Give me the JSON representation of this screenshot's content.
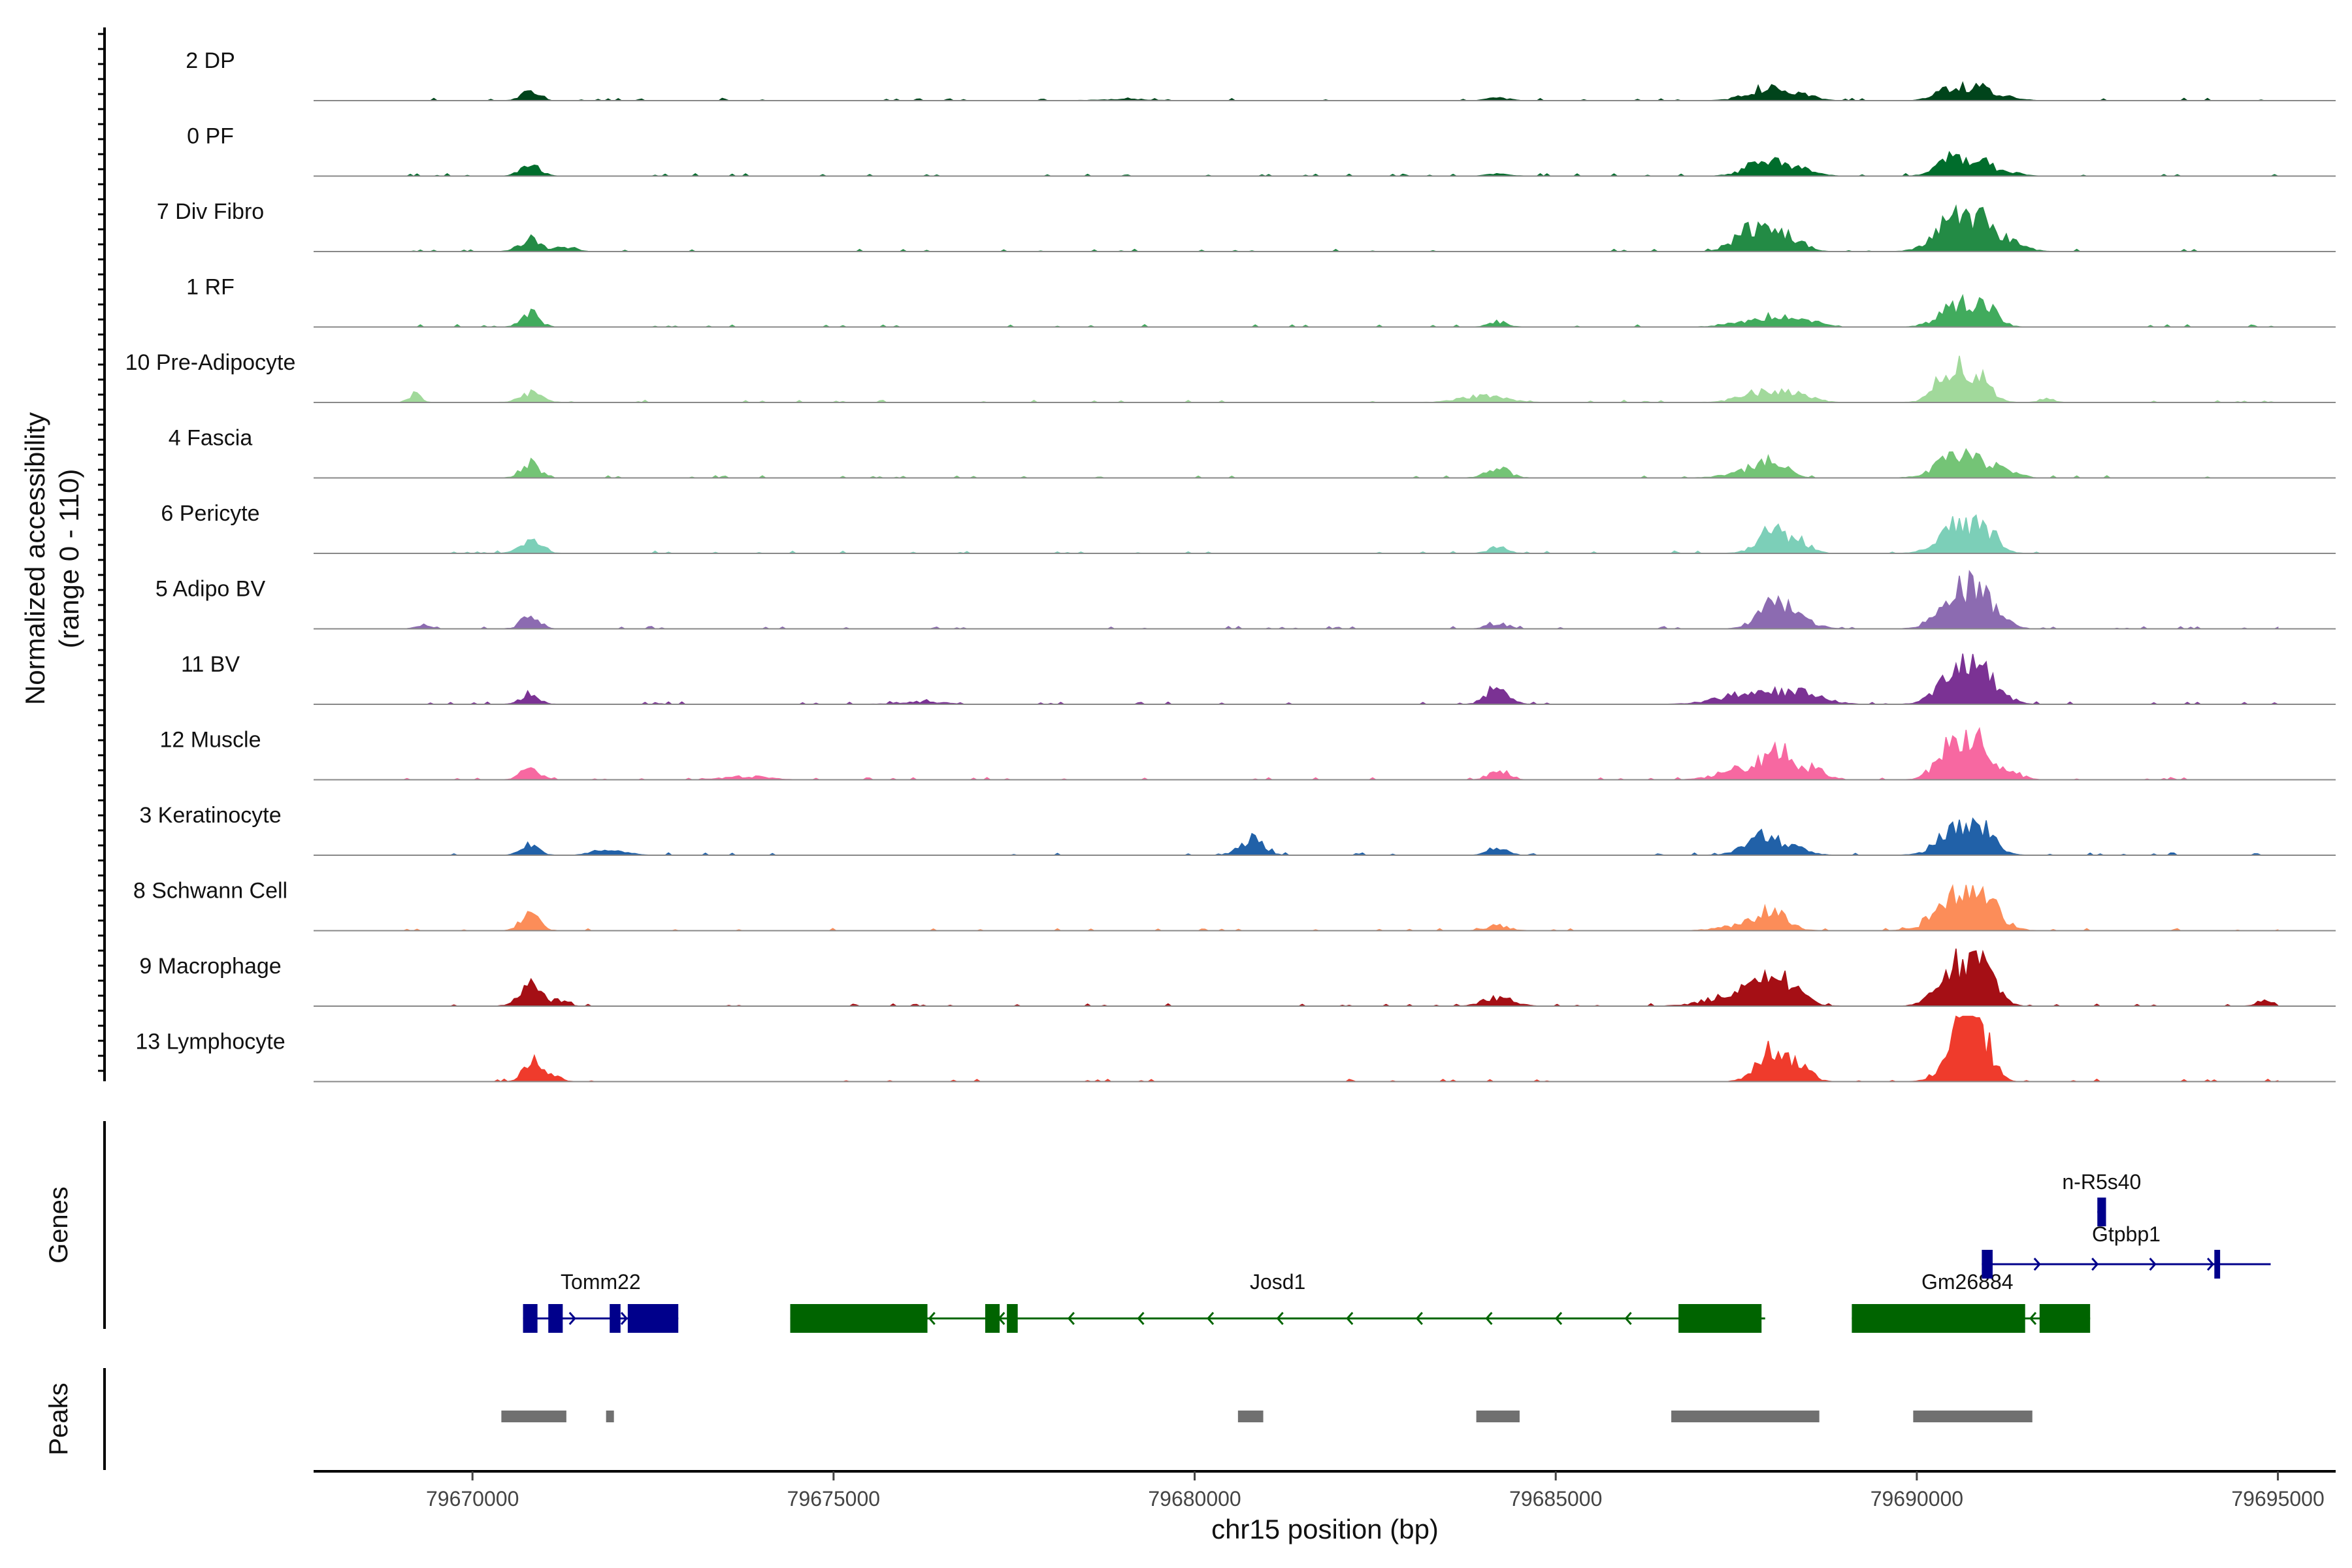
{
  "chart_data": {
    "type": "area",
    "title": "",
    "chromosome": "chr15",
    "xlabel": "chr15 position (bp)",
    "ylabel": "Normalized accessibility",
    "ylabel_range": "(range 0 - 110)",
    "ylim": [
      0,
      110
    ],
    "xlim": [
      79667800,
      79695800
    ],
    "x_ticks": [
      79670000,
      79675000,
      79680000,
      79685000,
      79690000,
      79695000
    ],
    "x_tick_labels": [
      "79670000",
      "79675000",
      "79680000",
      "79685000",
      "79690000",
      "79695000"
    ],
    "genes_panel_label": "Genes",
    "peaks_panel_label": "Peaks",
    "series": [
      {
        "name": "2 DP",
        "color": "#00441b",
        "peaks": [
          [
            79670800,
            14,
            120
          ],
          [
            79679000,
            2,
            300
          ],
          [
            79684200,
            4,
            150
          ],
          [
            79687900,
            20,
            250
          ],
          [
            79688400,
            8,
            200
          ],
          [
            79690500,
            22,
            200
          ],
          [
            79690900,
            18,
            150
          ],
          [
            79691300,
            6,
            150
          ]
        ]
      },
      {
        "name": "0 PF",
        "color": "#006d2c",
        "peaks": [
          [
            79670800,
            24,
            120
          ],
          [
            79684200,
            3,
            150
          ],
          [
            79687900,
            24,
            250
          ],
          [
            79688400,
            10,
            200
          ],
          [
            79690500,
            30,
            200
          ],
          [
            79690900,
            22,
            150
          ],
          [
            79691300,
            6,
            150
          ]
        ]
      },
      {
        "name": "7 Div Fibro",
        "color": "#238b45",
        "peaks": [
          [
            79670800,
            20,
            150
          ],
          [
            79671300,
            8,
            120
          ],
          [
            79687700,
            40,
            200
          ],
          [
            79688200,
            25,
            200
          ],
          [
            79690500,
            50,
            250
          ],
          [
            79690900,
            40,
            200
          ],
          [
            79691300,
            12,
            200
          ]
        ]
      },
      {
        "name": "1 RF",
        "color": "#41ab5d",
        "peaks": [
          [
            79670800,
            22,
            120
          ],
          [
            79684200,
            8,
            120
          ],
          [
            79687600,
            8,
            250
          ],
          [
            79688100,
            18,
            200
          ],
          [
            79688600,
            8,
            150
          ],
          [
            79690600,
            40,
            250
          ],
          [
            79691000,
            20,
            150
          ]
        ]
      },
      {
        "name": "10 Pre-Adipocyte",
        "color": "#a1d99b",
        "peaks": [
          [
            79669200,
            15,
            80
          ],
          [
            79670800,
            14,
            150
          ],
          [
            79684000,
            10,
            300
          ],
          [
            79687900,
            18,
            300
          ],
          [
            79688400,
            10,
            200
          ],
          [
            79690500,
            60,
            200
          ],
          [
            79690900,
            40,
            150
          ],
          [
            79691800,
            6,
            100
          ]
        ]
      },
      {
        "name": "4 Fascia",
        "color": "#74c476",
        "peaks": [
          [
            79670800,
            24,
            120
          ],
          [
            79684200,
            16,
            150
          ],
          [
            79687600,
            10,
            250
          ],
          [
            79688000,
            24,
            200
          ],
          [
            79690500,
            30,
            250
          ],
          [
            79690900,
            22,
            200
          ],
          [
            79691300,
            8,
            150
          ]
        ]
      },
      {
        "name": "6 Pericyte",
        "color": "#7ccfb8",
        "peaks": [
          [
            79670800,
            18,
            150
          ],
          [
            79684200,
            10,
            120
          ],
          [
            79688000,
            38,
            200
          ],
          [
            79688400,
            15,
            150
          ],
          [
            79690600,
            50,
            250
          ],
          [
            79691000,
            25,
            150
          ]
        ]
      },
      {
        "name": "5 Adipo BV",
        "color": "#8c6bb1",
        "peaks": [
          [
            79669300,
            5,
            100
          ],
          [
            79670800,
            22,
            120
          ],
          [
            79684200,
            10,
            120
          ],
          [
            79688000,
            44,
            200
          ],
          [
            79688400,
            15,
            200
          ],
          [
            79690600,
            65,
            250
          ],
          [
            79691000,
            30,
            200
          ]
        ]
      },
      {
        "name": "11 BV",
        "color": "#7b3294",
        "peaks": [
          [
            79670800,
            18,
            120
          ],
          [
            79676200,
            4,
            300
          ],
          [
            79684200,
            28,
            150
          ],
          [
            79687700,
            20,
            400
          ],
          [
            79688400,
            15,
            300
          ],
          [
            79690600,
            55,
            250
          ],
          [
            79691000,
            35,
            200
          ]
        ]
      },
      {
        "name": "12 Muscle",
        "color": "#f768a1",
        "peaks": [
          [
            79670800,
            20,
            120
          ],
          [
            79673800,
            5,
            300
          ],
          [
            79684200,
            18,
            120
          ],
          [
            79687600,
            18,
            300
          ],
          [
            79688100,
            45,
            200
          ],
          [
            79688600,
            15,
            150
          ],
          [
            79690500,
            65,
            200
          ],
          [
            79690900,
            48,
            150
          ],
          [
            79691300,
            12,
            150
          ]
        ]
      },
      {
        "name": "3 Keratinocyte",
        "color": "#2161a8",
        "peaks": [
          [
            79670800,
            15,
            120
          ],
          [
            79671900,
            10,
            200
          ],
          [
            79680800,
            30,
            150
          ],
          [
            79684200,
            14,
            120
          ],
          [
            79687900,
            32,
            250
          ],
          [
            79688400,
            10,
            150
          ],
          [
            79690600,
            55,
            250
          ],
          [
            79691000,
            25,
            150
          ]
        ]
      },
      {
        "name": "8 Schwann Cell",
        "color": "#fc8d59",
        "peaks": [
          [
            79670800,
            28,
            120
          ],
          [
            79684200,
            8,
            150
          ],
          [
            79687600,
            8,
            300
          ],
          [
            79688000,
            30,
            200
          ],
          [
            79690600,
            55,
            300
          ],
          [
            79691000,
            25,
            200
          ]
        ]
      },
      {
        "name": "9 Macrophage",
        "color": "#a50f15",
        "peaks": [
          [
            79670800,
            32,
            150
          ],
          [
            79671200,
            10,
            100
          ],
          [
            79684200,
            14,
            200
          ],
          [
            79687600,
            22,
            400
          ],
          [
            79688100,
            40,
            250
          ],
          [
            79690600,
            70,
            250
          ],
          [
            79691000,
            40,
            150
          ],
          [
            79694800,
            8,
            100
          ]
        ]
      },
      {
        "name": "13 Lymphocyte",
        "color": "#ef3b2c",
        "peaks": [
          [
            79670800,
            40,
            100
          ],
          [
            79671100,
            15,
            100
          ],
          [
            79688000,
            50,
            200
          ],
          [
            79688400,
            20,
            150
          ],
          [
            79690600,
            90,
            200
          ],
          [
            79690900,
            60,
            150
          ]
        ]
      }
    ],
    "genes": [
      {
        "name": "Tomm22",
        "strand": "+",
        "row": 2,
        "color": "#00008b",
        "start": 79670700,
        "end": 79672850,
        "exons": [
          [
            79670700,
            79670900
          ],
          [
            79671050,
            79671250
          ],
          [
            79671900,
            79672050
          ],
          [
            79672150,
            79672850
          ]
        ]
      },
      {
        "name": "Josd1",
        "strand": "-",
        "row": 2,
        "color": "#006400",
        "start": 79674400,
        "end": 79687900,
        "exons": [
          [
            79674400,
            79676300
          ],
          [
            79677100,
            79677300
          ],
          [
            79677400,
            79677550
          ],
          [
            79686700,
            79687850
          ]
        ]
      },
      {
        "name": "Gm26884",
        "strand": "-",
        "row": 2,
        "color": "#006400",
        "start": 79689100,
        "end": 79692400,
        "exons": [
          [
            79689100,
            79691500
          ],
          [
            79691700,
            79692400
          ]
        ]
      },
      {
        "name": "Gtpbp1",
        "strand": "+",
        "row": 1,
        "color": "#00008b",
        "start": 79690900,
        "end": 79694900,
        "exons": [
          [
            79690900,
            79691050
          ],
          [
            79694120,
            79694200
          ]
        ]
      },
      {
        "name": "n-R5s40",
        "strand": "+",
        "row": 0,
        "color": "#00008b",
        "start": 79692500,
        "end": 79692620,
        "exons": [
          [
            79692500,
            79692620
          ]
        ]
      }
    ],
    "peak_regions": [
      [
        79670400,
        79671300
      ],
      [
        79671850,
        79671950
      ],
      [
        79680600,
        79680950
      ],
      [
        79683900,
        79684500
      ],
      [
        79686600,
        79688650
      ],
      [
        79689950,
        79691600
      ]
    ]
  }
}
